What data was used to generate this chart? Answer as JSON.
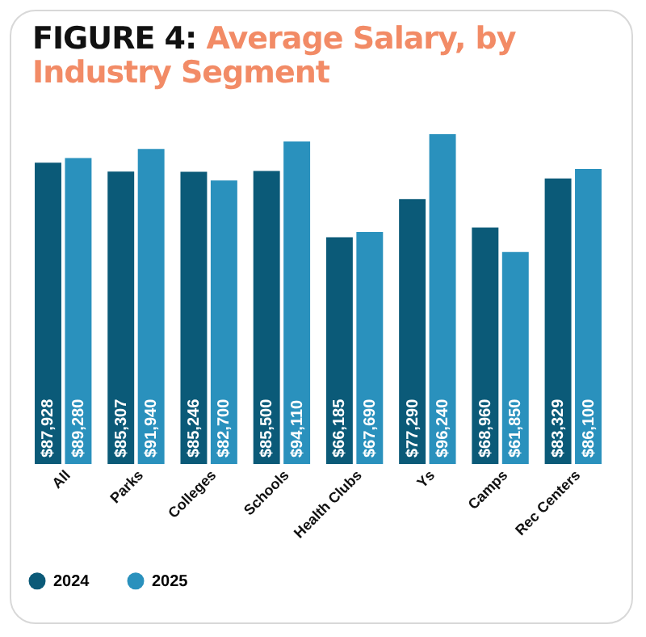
{
  "chart_data": {
    "type": "bar",
    "title": "FIGURE 4: Average Salary, by Industry Segment",
    "categories": [
      "All",
      "Parks",
      "Colleges",
      "Schools",
      "Health Clubs",
      "Ys",
      "Camps",
      "Rec Centers"
    ],
    "series": [
      {
        "name": "2024",
        "color": "#0b5a78",
        "values": [
          87928,
          85307,
          85246,
          85500,
          66185,
          77290,
          68960,
          83329
        ],
        "value_labels": [
          "$87,928",
          "$85,307",
          "$85,246",
          "$85,500",
          "$66,185",
          "$77,290",
          "$68,960",
          "$83,329"
        ]
      },
      {
        "name": "2025",
        "color": "#2a91bd",
        "values": [
          89280,
          91940,
          82700,
          94110,
          67690,
          96240,
          61850,
          86100
        ],
        "value_labels": [
          "$89,280",
          "$91,940",
          "$82,700",
          "$94,110",
          "$67,690",
          "$96,240",
          "$61,850",
          "$86,100"
        ]
      }
    ],
    "legend": "bottom",
    "grid": false
  }
}
